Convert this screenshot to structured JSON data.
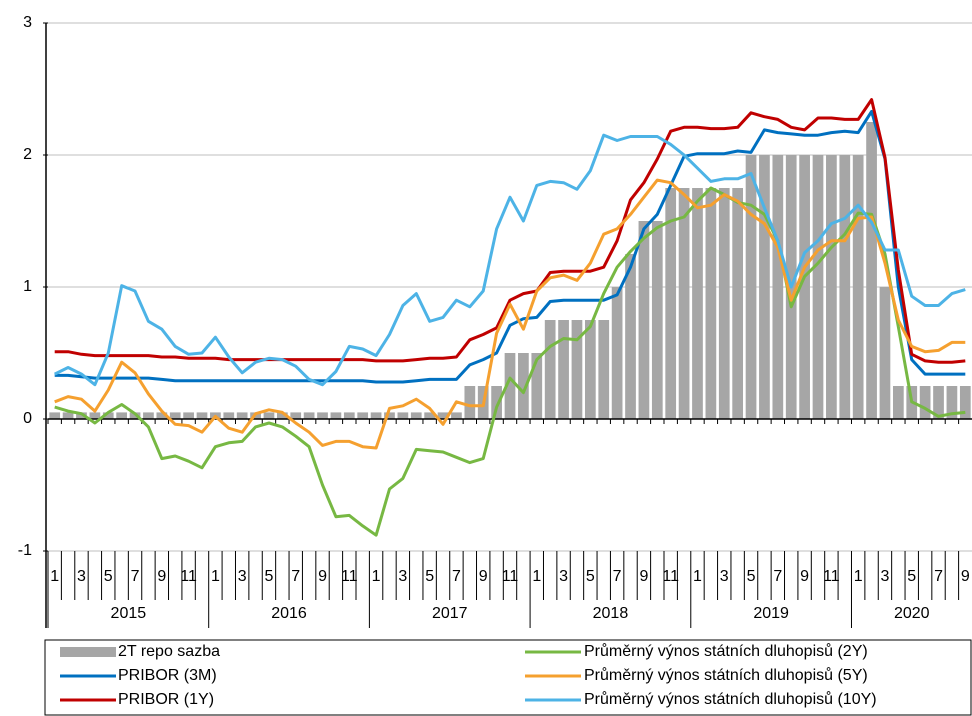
{
  "chart_data": {
    "type": "combo",
    "categories": [
      "1",
      null,
      "3",
      null,
      "5",
      null,
      "7",
      null,
      "9",
      null,
      "11",
      null,
      "1",
      null,
      "3",
      null,
      "5",
      null,
      "7",
      null,
      "9",
      null,
      "11",
      null,
      "1",
      null,
      "3",
      null,
      "5",
      null,
      "7",
      null,
      "9",
      null,
      "11",
      null,
      "1",
      null,
      "3",
      null,
      "5",
      null,
      "7",
      null,
      "9",
      null,
      "11",
      null,
      "1",
      null,
      "3",
      null,
      "5",
      null,
      "7",
      null,
      "9",
      null,
      "11",
      null,
      "1",
      null,
      "3",
      null,
      "5",
      null,
      "7",
      null,
      "9"
    ],
    "years": [
      "2015",
      "2016",
      "2017",
      "2018",
      "2019",
      "2020"
    ],
    "ylim": [
      -1,
      3
    ],
    "yticks": [
      -1,
      0,
      1,
      2,
      3
    ],
    "grid": true,
    "series": [
      {
        "name": "2T repo sazba",
        "type": "bar",
        "color": "#a6a6a6",
        "values": [
          0.05,
          0.05,
          0.05,
          0.05,
          0.05,
          0.05,
          0.05,
          0.05,
          0.05,
          0.05,
          0.05,
          0.05,
          0.05,
          0.05,
          0.05,
          0.05,
          0.05,
          0.05,
          0.05,
          0.05,
          0.05,
          0.05,
          0.05,
          0.05,
          0.05,
          0.05,
          0.05,
          0.05,
          0.05,
          0.05,
          0.05,
          0.25,
          0.25,
          0.25,
          0.5,
          0.5,
          0.5,
          0.75,
          0.75,
          0.75,
          0.75,
          0.75,
          1.0,
          1.25,
          1.5,
          1.5,
          1.75,
          1.75,
          1.75,
          1.75,
          1.75,
          1.75,
          2.0,
          2.0,
          2.0,
          2.0,
          2.0,
          2.0,
          2.0,
          2.0,
          2.0,
          2.25,
          1.0,
          0.25,
          0.25,
          0.25,
          0.25,
          0.25,
          0.25
        ]
      },
      {
        "name": "PRIBOR (3M)",
        "type": "line",
        "color": "#0070c0",
        "values": [
          0.33,
          0.33,
          0.32,
          0.31,
          0.31,
          0.31,
          0.31,
          0.31,
          0.3,
          0.29,
          0.29,
          0.29,
          0.29,
          0.29,
          0.29,
          0.29,
          0.29,
          0.29,
          0.29,
          0.29,
          0.29,
          0.29,
          0.29,
          0.29,
          0.28,
          0.28,
          0.28,
          0.29,
          0.3,
          0.3,
          0.3,
          0.41,
          0.45,
          0.5,
          0.71,
          0.76,
          0.77,
          0.89,
          0.9,
          0.9,
          0.9,
          0.9,
          0.94,
          1.15,
          1.44,
          1.55,
          1.77,
          1.99,
          2.01,
          2.01,
          2.01,
          2.03,
          2.02,
          2.19,
          2.17,
          2.16,
          2.15,
          2.15,
          2.17,
          2.18,
          2.17,
          2.33,
          1.97,
          1.0,
          0.45,
          0.34,
          0.34,
          0.34,
          0.34
        ]
      },
      {
        "name": "PRIBOR (1Y)",
        "type": "line",
        "color": "#c00000",
        "values": [
          0.51,
          0.51,
          0.49,
          0.48,
          0.48,
          0.48,
          0.48,
          0.48,
          0.47,
          0.47,
          0.46,
          0.46,
          0.46,
          0.45,
          0.45,
          0.45,
          0.45,
          0.45,
          0.45,
          0.45,
          0.45,
          0.45,
          0.45,
          0.45,
          0.44,
          0.44,
          0.44,
          0.45,
          0.46,
          0.46,
          0.47,
          0.6,
          0.64,
          0.69,
          0.9,
          0.95,
          0.97,
          1.11,
          1.12,
          1.12,
          1.12,
          1.15,
          1.35,
          1.66,
          1.79,
          1.97,
          2.18,
          2.21,
          2.21,
          2.2,
          2.2,
          2.21,
          2.32,
          2.29,
          2.27,
          2.21,
          2.19,
          2.28,
          2.28,
          2.27,
          2.27,
          2.42,
          1.98,
          1.13,
          0.49,
          0.44,
          0.43,
          0.43,
          0.44
        ]
      },
      {
        "name": "Průměrný výnos státních dluhopisů (2Y)",
        "type": "line",
        "color": "#77b843",
        "values": [
          0.09,
          0.06,
          0.04,
          -0.03,
          0.05,
          0.11,
          0.04,
          -0.06,
          -0.3,
          -0.28,
          -0.32,
          -0.37,
          -0.21,
          -0.18,
          -0.17,
          -0.06,
          -0.03,
          -0.06,
          -0.13,
          -0.21,
          -0.5,
          -0.74,
          -0.73,
          -0.81,
          -0.88,
          -0.53,
          -0.45,
          -0.23,
          -0.24,
          -0.25,
          -0.29,
          -0.33,
          -0.3,
          0.09,
          0.31,
          0.2,
          0.45,
          0.55,
          0.61,
          0.6,
          0.7,
          0.95,
          1.15,
          1.27,
          1.37,
          1.45,
          1.5,
          1.53,
          1.65,
          1.75,
          1.7,
          1.64,
          1.62,
          1.55,
          1.35,
          0.85,
          1.08,
          1.18,
          1.3,
          1.4,
          1.56,
          1.55,
          1.25,
          0.7,
          0.13,
          0.08,
          0.02,
          0.04,
          0.05
        ]
      },
      {
        "name": "Průměrný výnos státních dluhopisů (5Y)",
        "type": "line",
        "color": "#f5a02f",
        "values": [
          0.13,
          0.17,
          0.15,
          0.06,
          0.22,
          0.43,
          0.35,
          0.19,
          0.06,
          -0.04,
          -0.05,
          -0.1,
          0.02,
          -0.07,
          -0.1,
          0.04,
          0.07,
          0.05,
          -0.03,
          -0.1,
          -0.2,
          -0.17,
          -0.17,
          -0.21,
          -0.22,
          0.08,
          0.1,
          0.15,
          0.08,
          -0.04,
          0.13,
          0.1,
          0.1,
          0.65,
          0.87,
          0.68,
          0.97,
          1.07,
          1.09,
          1.05,
          1.18,
          1.4,
          1.44,
          1.55,
          1.68,
          1.81,
          1.79,
          1.7,
          1.6,
          1.62,
          1.7,
          1.65,
          1.55,
          1.48,
          1.3,
          0.9,
          1.15,
          1.28,
          1.35,
          1.35,
          1.52,
          1.53,
          1.18,
          0.75,
          0.55,
          0.51,
          0.52,
          0.58,
          0.58
        ]
      },
      {
        "name": "Průměrný výnos státních dluhopisů (10Y)",
        "type": "line",
        "color": "#4db3e6",
        "values": [
          0.34,
          0.39,
          0.34,
          0.26,
          0.5,
          1.01,
          0.97,
          0.74,
          0.68,
          0.55,
          0.49,
          0.5,
          0.62,
          0.47,
          0.35,
          0.43,
          0.46,
          0.45,
          0.4,
          0.3,
          0.26,
          0.36,
          0.55,
          0.53,
          0.48,
          0.64,
          0.86,
          0.95,
          0.74,
          0.77,
          0.9,
          0.85,
          0.97,
          1.44,
          1.68,
          1.5,
          1.77,
          1.8,
          1.79,
          1.74,
          1.88,
          2.15,
          2.11,
          2.14,
          2.14,
          2.14,
          2.08,
          2.0,
          1.9,
          1.8,
          1.82,
          1.82,
          1.86,
          1.6,
          1.35,
          1.0,
          1.26,
          1.35,
          1.48,
          1.52,
          1.62,
          1.49,
          1.28,
          1.28,
          0.93,
          0.86,
          0.86,
          0.95,
          0.98
        ]
      }
    ]
  }
}
